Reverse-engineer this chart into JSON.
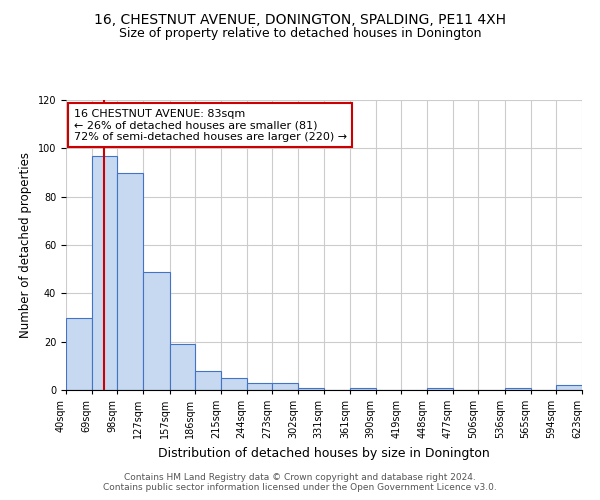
{
  "title1": "16, CHESTNUT AVENUE, DONINGTON, SPALDING, PE11 4XH",
  "title2": "Size of property relative to detached houses in Donington",
  "xlabel": "Distribution of detached houses by size in Donington",
  "ylabel": "Number of detached properties",
  "footnote": "Contains HM Land Registry data © Crown copyright and database right 2024.\nContains public sector information licensed under the Open Government Licence v3.0.",
  "bin_edges": [
    40,
    69,
    98,
    127,
    157,
    186,
    215,
    244,
    273,
    302,
    331,
    361,
    390,
    419,
    448,
    477,
    506,
    536,
    565,
    594,
    623
  ],
  "bar_heights": [
    30,
    97,
    90,
    49,
    19,
    8,
    5,
    3,
    3,
    1,
    0,
    1,
    0,
    0,
    1,
    0,
    0,
    1,
    0,
    2
  ],
  "bar_color": "#c6d9f0",
  "bar_edge_color": "#4472c4",
  "property_size": 83,
  "property_line_color": "#cc0000",
  "annotation_text": "16 CHESTNUT AVENUE: 83sqm\n← 26% of detached houses are smaller (81)\n72% of semi-detached houses are larger (220) →",
  "annotation_box_color": "#cc0000",
  "ylim": [
    0,
    120
  ],
  "yticks": [
    0,
    20,
    40,
    60,
    80,
    100,
    120
  ],
  "background_color": "#ffffff",
  "grid_color": "#cccccc",
  "title1_fontsize": 10,
  "title2_fontsize": 9,
  "xlabel_fontsize": 9,
  "ylabel_fontsize": 8.5,
  "tick_label_fontsize": 7,
  "annotation_fontsize": 8,
  "footnote_fontsize": 6.5
}
